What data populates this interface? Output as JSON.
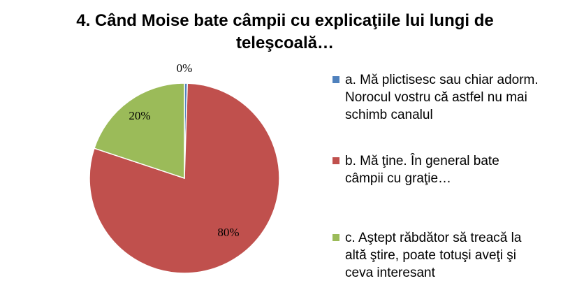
{
  "chart_data": {
    "type": "pie",
    "title_lines": [
      "4. Când Moise bate câmpii cu explicaţiile lui lungi de",
      "teleşcoală…"
    ],
    "slices": [
      {
        "label_lines": [
          "a. Mă plictisesc sau chiar adorm.",
          "Norocul vostru că astfel nu mai",
          "schimb canalul"
        ],
        "value": 0.5,
        "display": "0%",
        "color": "#4F81BD"
      },
      {
        "label_lines": [
          "b. Mă ţine. În general bate",
          "câmpii cu graţie…"
        ],
        "value": 80,
        "display": "80%",
        "color": "#C0504D"
      },
      {
        "label_lines": [
          "c. Aştept răbdător să treacă la",
          "altă ştire, poate totuşi aveţi şi",
          "ceva interesant"
        ],
        "value": 20,
        "display": "20%",
        "color": "#9BBB59"
      }
    ],
    "legend_position": "right"
  }
}
